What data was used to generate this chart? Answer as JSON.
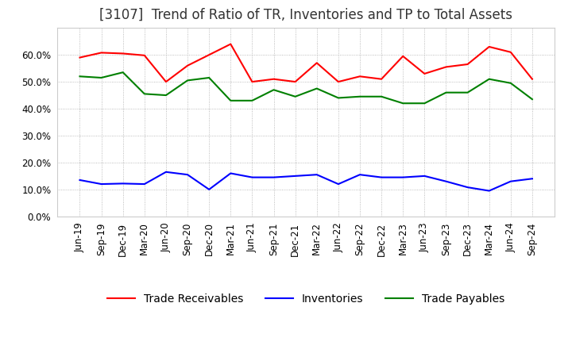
{
  "title": "[3107]  Trend of Ratio of TR, Inventories and TP to Total Assets",
  "x_labels": [
    "Jun-19",
    "Sep-19",
    "Dec-19",
    "Mar-20",
    "Jun-20",
    "Sep-20",
    "Dec-20",
    "Mar-21",
    "Jun-21",
    "Sep-21",
    "Dec-21",
    "Mar-22",
    "Jun-22",
    "Sep-22",
    "Dec-22",
    "Mar-23",
    "Jun-23",
    "Sep-23",
    "Dec-23",
    "Mar-24",
    "Jun-24",
    "Sep-24"
  ],
  "trade_receivables": [
    0.59,
    0.608,
    0.605,
    0.598,
    0.5,
    0.56,
    0.6,
    0.64,
    0.5,
    0.51,
    0.5,
    0.57,
    0.5,
    0.52,
    0.51,
    0.595,
    0.53,
    0.555,
    0.565,
    0.63,
    0.61,
    0.51
  ],
  "inventories": [
    0.135,
    0.12,
    0.122,
    0.12,
    0.165,
    0.155,
    0.1,
    0.16,
    0.145,
    0.145,
    0.15,
    0.155,
    0.12,
    0.155,
    0.145,
    0.145,
    0.15,
    0.13,
    0.108,
    0.095,
    0.13,
    0.14
  ],
  "trade_payables": [
    0.52,
    0.515,
    0.535,
    0.455,
    0.45,
    0.505,
    0.515,
    0.43,
    0.43,
    0.47,
    0.445,
    0.475,
    0.44,
    0.445,
    0.445,
    0.42,
    0.42,
    0.46,
    0.46,
    0.51,
    0.495,
    0.435
  ],
  "tr_color": "#ff0000",
  "inv_color": "#0000ff",
  "tp_color": "#008000",
  "background_color": "#ffffff",
  "grid_color": "#aaaaaa",
  "ylim": [
    0.0,
    0.7
  ],
  "yticks": [
    0.0,
    0.1,
    0.2,
    0.3,
    0.4,
    0.5,
    0.6
  ],
  "title_fontsize": 12,
  "legend_fontsize": 10,
  "tick_fontsize": 8.5
}
